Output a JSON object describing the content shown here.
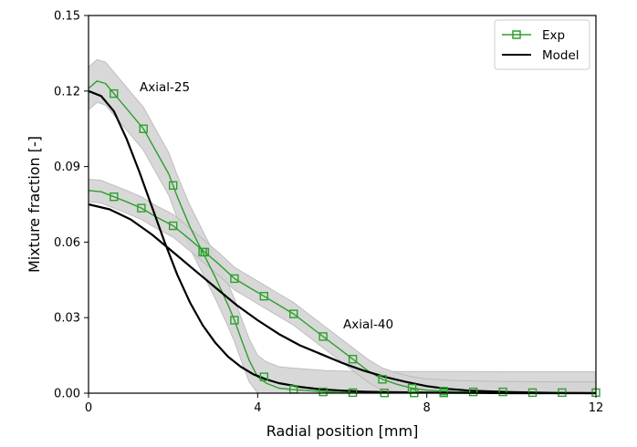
{
  "chart_data": {
    "type": "line",
    "xlabel": "Radial position [mm]",
    "ylabel": "Mixture fraction [-]",
    "xlim": [
      0,
      12
    ],
    "ylim": [
      0,
      0.15
    ],
    "xticks": [
      "0",
      "4",
      "8",
      "12"
    ],
    "yticks": [
      "0.00",
      "0.03",
      "0.06",
      "0.09",
      "0.12",
      "0.15"
    ],
    "grid": false,
    "legend": {
      "position": "top-right",
      "entries": [
        {
          "label": "Exp",
          "color": "#2ca02c",
          "marker": "square"
        },
        {
          "label": "Model",
          "color": "#000000",
          "marker": "none"
        }
      ]
    },
    "annotations": [
      {
        "text": "Axial-25",
        "x": 1.2,
        "y": 0.121
      },
      {
        "text": "Axial-40",
        "x": 6.15,
        "y": 0.0275
      }
    ],
    "series": [
      {
        "name": "Exp",
        "group": "Axial-25",
        "color": "#2ca02c",
        "band_halfwidth": 0.0085,
        "x": [
          0,
          0.2,
          0.4,
          0.6,
          0.9,
          1.3,
          1.6,
          1.9,
          2.1,
          2.4,
          2.7,
          3.0,
          3.3,
          3.45,
          3.6,
          3.8,
          4.0,
          4.2,
          4.5,
          4.8,
          5.2,
          5.6,
          6.0,
          6.3,
          7.0,
          7.7,
          8.4,
          9.0,
          10.0,
          11.0,
          12.0
        ],
        "y": [
          0.121,
          0.124,
          0.123,
          0.119,
          0.113,
          0.105,
          0.096,
          0.087,
          0.078,
          0.066,
          0.056,
          0.046,
          0.035,
          0.029,
          0.022,
          0.013,
          0.0065,
          0.004,
          0.002,
          0.0015,
          0.001,
          0.0005,
          0.0003,
          0.0002,
          0.0001,
          0.0001,
          0.0001,
          0.0001,
          0,
          0,
          0
        ]
      },
      {
        "name": "Exp",
        "group": "Axial-40",
        "color": "#2ca02c",
        "band_halfwidth": 0.0045,
        "x": [
          0,
          0.3,
          0.6,
          0.9,
          1.25,
          1.6,
          2.0,
          2.4,
          2.75,
          3.1,
          3.45,
          3.8,
          4.15,
          4.5,
          4.85,
          5.2,
          5.55,
          5.9,
          6.25,
          6.6,
          6.95,
          7.3,
          7.65,
          8.0,
          8.4,
          8.7,
          9.0,
          9.5,
          10.0,
          11.0,
          12.0
        ],
        "y": [
          0.0805,
          0.08,
          0.078,
          0.076,
          0.0735,
          0.07,
          0.0665,
          0.061,
          0.056,
          0.051,
          0.0455,
          0.042,
          0.0385,
          0.035,
          0.0315,
          0.027,
          0.0225,
          0.018,
          0.0135,
          0.009,
          0.0055,
          0.0035,
          0.002,
          0.0012,
          0.0008,
          0.0005,
          0.0004,
          0.0002,
          0.0001,
          0,
          0
        ]
      },
      {
        "name": "Model",
        "group": "Axial-25",
        "color": "#000000",
        "x": [
          0,
          0.3,
          0.6,
          0.9,
          1.2,
          1.5,
          1.8,
          2.1,
          2.4,
          2.7,
          3.0,
          3.3,
          3.6,
          3.9,
          4.2,
          4.5,
          5.0,
          5.5,
          6.0,
          6.5,
          7.0,
          8.0,
          9.0,
          10.0,
          11.0,
          12.0
        ],
        "y": [
          0.12,
          0.118,
          0.112,
          0.101,
          0.088,
          0.074,
          0.06,
          0.047,
          0.036,
          0.027,
          0.02,
          0.0145,
          0.0105,
          0.0075,
          0.0055,
          0.004,
          0.0025,
          0.0015,
          0.001,
          0.0006,
          0.0004,
          0.0002,
          0.0001,
          0,
          0,
          0
        ]
      },
      {
        "name": "Model",
        "group": "Axial-40",
        "color": "#000000",
        "x": [
          0,
          0.5,
          1.0,
          1.5,
          2.0,
          2.5,
          3.0,
          3.5,
          4.0,
          4.5,
          5.0,
          5.5,
          6.0,
          6.5,
          7.0,
          7.5,
          8.0,
          8.5,
          9.0,
          10.0,
          11.0,
          12.0
        ],
        "y": [
          0.075,
          0.073,
          0.069,
          0.063,
          0.056,
          0.049,
          0.042,
          0.035,
          0.029,
          0.0235,
          0.019,
          0.0155,
          0.012,
          0.009,
          0.0065,
          0.0045,
          0.0028,
          0.0017,
          0.001,
          0.0004,
          0.0001,
          0
        ]
      }
    ],
    "markers": [
      {
        "group": "Axial-25",
        "x": [
          0.6,
          1.3,
          2.0,
          2.7,
          3.45,
          4.15,
          4.85,
          5.55,
          6.25,
          7.0,
          7.7,
          8.4,
          9.1,
          9.8,
          10.5,
          11.2,
          12.0
        ],
        "y": [
          0.119,
          0.105,
          0.0825,
          0.056,
          0.029,
          0.0065,
          0.0015,
          0.0005,
          0.0002,
          0.0001,
          0.0001,
          0.0001,
          0.0005,
          0.0005,
          0.0002,
          0.0002,
          0.0002
        ]
      },
      {
        "group": "Axial-40",
        "x": [
          0.6,
          1.25,
          2.0,
          2.75,
          3.45,
          4.15,
          4.85,
          5.55,
          6.25,
          6.95,
          7.65,
          8.4
        ],
        "y": [
          0.078,
          0.0735,
          0.0665,
          0.056,
          0.0455,
          0.0385,
          0.0315,
          0.0225,
          0.0135,
          0.0055,
          0.002,
          0.0008
        ]
      }
    ]
  }
}
